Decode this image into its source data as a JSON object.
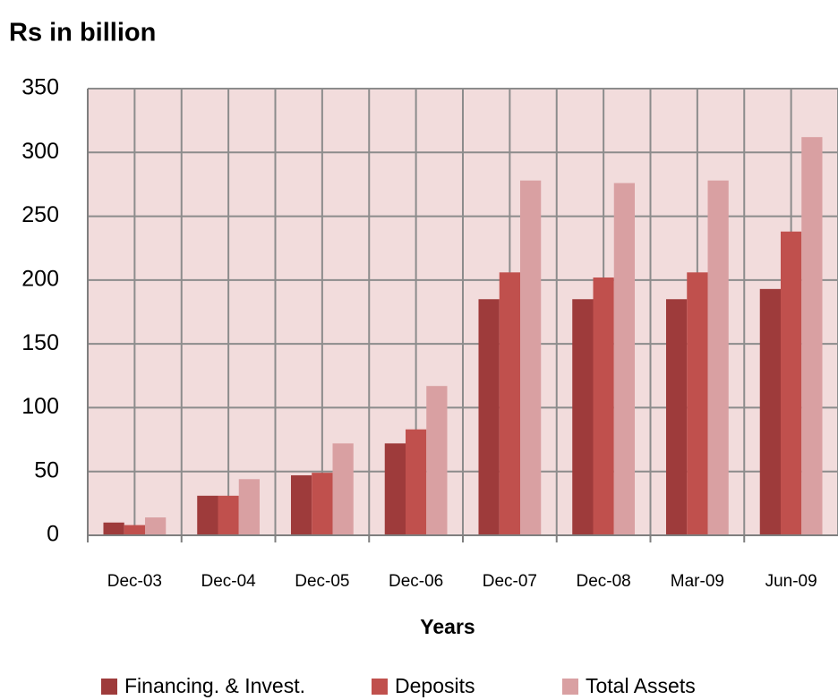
{
  "chart_data": {
    "type": "bar",
    "title": "Rs in billion",
    "x_label": "Years",
    "categories": [
      "Dec-03",
      "Dec-04",
      "Dec-05",
      "Dec-06",
      "Dec-07",
      "Dec-08",
      "Mar-09",
      "Jun-09"
    ],
    "series": [
      {
        "name": "Financing. & Invest.",
        "color": "#9e3b3b",
        "values": [
          10,
          31,
          47,
          72,
          185,
          185,
          185,
          193
        ]
      },
      {
        "name": "Deposits",
        "color": "#c0504d",
        "values": [
          8,
          31,
          49,
          83,
          206,
          202,
          206,
          238
        ]
      },
      {
        "name": "Total Assets",
        "color": "#d9a0a2",
        "values": [
          14,
          44,
          72,
          117,
          278,
          276,
          278,
          312
        ]
      }
    ],
    "ylim": [
      0,
      350
    ],
    "yticks": [
      0,
      50,
      100,
      150,
      200,
      250,
      300,
      350
    ],
    "grid": true,
    "legend": "bottom"
  }
}
